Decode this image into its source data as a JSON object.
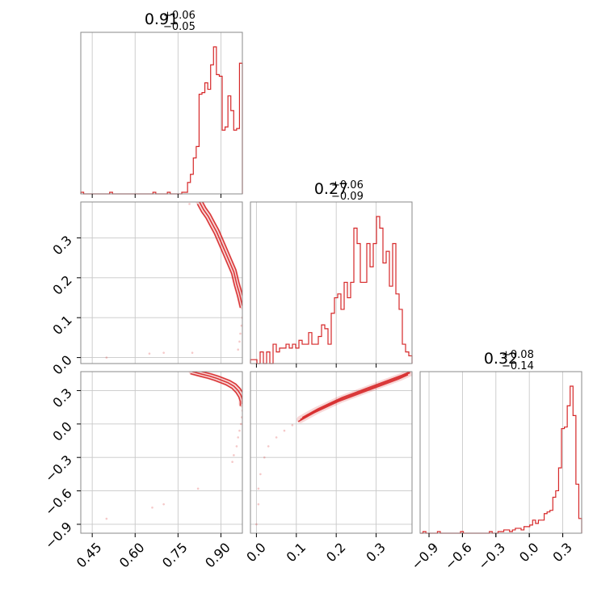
{
  "chart_data": {
    "type": "corner",
    "color": "#d62728",
    "params": [
      {
        "median": "0.91",
        "plus": "+0.06",
        "minus": "−0.05",
        "range": [
          0.41,
          0.975
        ],
        "ticks": [
          0.45,
          0.6,
          0.75,
          0.9
        ],
        "tick_labels": [
          "0.45",
          "0.60",
          "0.75",
          "0.90"
        ],
        "hist": [
          1,
          0,
          0,
          0,
          0,
          0,
          0,
          0,
          0,
          0,
          1,
          0,
          0,
          0,
          0,
          0,
          0,
          0,
          0,
          0,
          0,
          0,
          0,
          0,
          0,
          1,
          0,
          0,
          0,
          0,
          1,
          0,
          0,
          0,
          0,
          1,
          1,
          7,
          12,
          22,
          29,
          61,
          62,
          68,
          64,
          79,
          90,
          73,
          72,
          39,
          41,
          60,
          51,
          39,
          40,
          80
        ]
      },
      {
        "median": "0.27",
        "plus": "+0.06",
        "minus": "−0.09",
        "range": [
          -0.015,
          0.39
        ],
        "ticks": [
          0.0,
          0.1,
          0.2,
          0.3
        ],
        "tick_labels": [
          "0.0",
          "0.1",
          "0.2",
          "0.3"
        ],
        "hist": [
          1,
          1,
          0,
          3,
          0,
          3,
          0,
          5,
          3,
          4,
          4,
          5,
          4,
          5,
          4,
          6,
          5,
          5,
          8,
          5,
          5,
          7,
          10,
          9,
          5,
          13,
          17,
          18,
          14,
          21,
          17,
          21,
          35,
          31,
          21,
          21,
          31,
          25,
          31,
          38,
          35,
          26,
          29,
          20,
          31,
          18,
          14,
          5,
          3,
          2
        ]
      },
      {
        "median": "0.32",
        "plus": "+0.08",
        "minus": "−0.14",
        "range": [
          -0.98,
          0.47
        ],
        "ticks": [
          -0.9,
          -0.6,
          -0.3,
          0.0,
          0.3
        ],
        "tick_labels": [
          "−0.9",
          "−0.6",
          "−0.3",
          "0.0",
          "0.3"
        ],
        "hist": [
          0,
          1,
          0,
          0,
          0,
          0,
          1,
          0,
          0,
          0,
          0,
          0,
          0,
          0,
          1,
          0,
          0,
          0,
          0,
          0,
          0,
          0,
          0,
          0,
          1,
          0,
          0,
          1,
          1,
          2,
          2,
          1,
          2,
          3,
          3,
          2,
          4,
          4,
          5,
          8,
          6,
          8,
          8,
          12,
          13,
          14,
          22,
          26,
          40,
          64,
          65,
          78,
          90,
          72,
          30,
          9
        ]
      }
    ],
    "pairs": [
      {
        "name": "param2-vs-param1",
        "x_param": 0,
        "y_param": 1,
        "dense": [
          [
            0.825,
            0.39
          ],
          [
            0.84,
            0.37
          ],
          [
            0.855,
            0.355
          ],
          [
            0.87,
            0.335
          ],
          [
            0.885,
            0.315
          ],
          [
            0.9,
            0.29
          ],
          [
            0.915,
            0.265
          ],
          [
            0.93,
            0.24
          ],
          [
            0.945,
            0.215
          ],
          [
            0.955,
            0.185
          ],
          [
            0.965,
            0.16
          ],
          [
            0.975,
            0.13
          ]
        ],
        "sparse": [
          [
            0.975,
            0.1
          ],
          [
            0.972,
            0.08
          ],
          [
            0.968,
            0.06
          ],
          [
            0.965,
            0.04
          ],
          [
            0.96,
            0.02
          ],
          [
            0.5,
            0.0
          ],
          [
            0.65,
            0.01
          ],
          [
            0.7,
            0.012
          ],
          [
            0.8,
            0.012
          ],
          [
            0.79,
            0.385
          ]
        ]
      },
      {
        "name": "param3-vs-param1",
        "x_param": 0,
        "y_param": 2,
        "dense": [
          [
            0.8,
            0.47
          ],
          [
            0.83,
            0.45
          ],
          [
            0.86,
            0.43
          ],
          [
            0.885,
            0.41
          ],
          [
            0.905,
            0.39
          ],
          [
            0.925,
            0.37
          ],
          [
            0.945,
            0.34
          ],
          [
            0.96,
            0.3
          ],
          [
            0.97,
            0.26
          ],
          [
            0.975,
            0.22
          ],
          [
            0.975,
            0.18
          ]
        ],
        "sparse": [
          [
            0.975,
            0.12
          ],
          [
            0.973,
            0.06
          ],
          [
            0.97,
            0.0
          ],
          [
            0.965,
            -0.06
          ],
          [
            0.96,
            -0.12
          ],
          [
            0.955,
            -0.2
          ],
          [
            0.945,
            -0.28
          ],
          [
            0.94,
            -0.34
          ],
          [
            0.82,
            -0.58
          ],
          [
            0.7,
            -0.72
          ],
          [
            0.66,
            -0.75
          ],
          [
            0.5,
            -0.85
          ]
        ]
      },
      {
        "name": "param3-vs-param2",
        "x_param": 1,
        "y_param": 2,
        "dense": [
          [
            0.11,
            0.04
          ],
          [
            0.15,
            0.12
          ],
          [
            0.18,
            0.17
          ],
          [
            0.21,
            0.22
          ],
          [
            0.24,
            0.26
          ],
          [
            0.27,
            0.3
          ],
          [
            0.3,
            0.34
          ],
          [
            0.33,
            0.38
          ],
          [
            0.36,
            0.42
          ],
          [
            0.385,
            0.46
          ]
        ],
        "sparse": [
          [
            0.0,
            -0.9
          ],
          [
            0.005,
            -0.72
          ],
          [
            0.005,
            -0.58
          ],
          [
            0.01,
            -0.45
          ],
          [
            0.02,
            -0.3
          ],
          [
            0.03,
            -0.2
          ],
          [
            0.05,
            -0.12
          ],
          [
            0.07,
            -0.06
          ],
          [
            0.09,
            -0.01
          ]
        ]
      }
    ]
  }
}
